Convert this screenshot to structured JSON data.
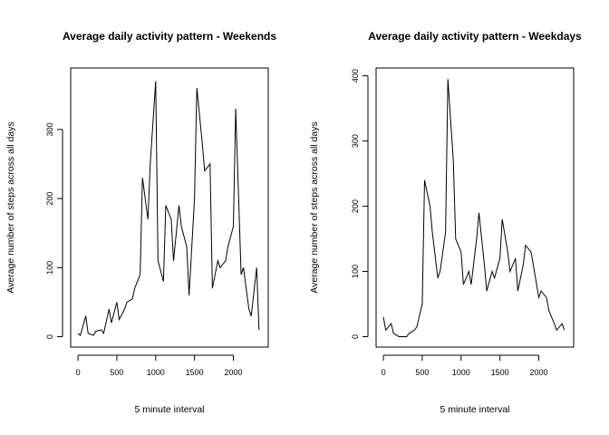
{
  "chart_data": [
    {
      "type": "line",
      "title": "Average daily activity pattern - Weekends",
      "x_label": "5 minute interval",
      "y_label": "Average number of steps across all days",
      "color": "#000000",
      "x": [
        0,
        30,
        100,
        130,
        200,
        230,
        300,
        330,
        400,
        430,
        500,
        530,
        600,
        630,
        700,
        730,
        800,
        830,
        900,
        930,
        1000,
        1030,
        1100,
        1130,
        1200,
        1230,
        1300,
        1330,
        1400,
        1430,
        1500,
        1530,
        1600,
        1630,
        1700,
        1730,
        1800,
        1830,
        1900,
        1930,
        2000,
        2030,
        2100,
        2130,
        2200,
        2230,
        2300,
        2330
      ],
      "values": [
        5,
        2,
        30,
        5,
        2,
        8,
        10,
        5,
        40,
        20,
        50,
        25,
        40,
        50,
        55,
        70,
        90,
        230,
        170,
        250,
        370,
        110,
        80,
        190,
        170,
        110,
        190,
        160,
        130,
        60,
        200,
        360,
        280,
        240,
        250,
        70,
        110,
        100,
        110,
        130,
        160,
        330,
        90,
        100,
        40,
        30,
        100,
        10
      ],
      "xlim": [
        -94.2,
        2449.2
      ],
      "ylim": [
        -15,
        389
      ],
      "xticks": [
        0,
        500,
        1000,
        1500,
        2000
      ],
      "yticks": [
        0,
        100,
        200,
        300
      ]
    },
    {
      "type": "line",
      "title": "Average daily activity pattern - Weekdays",
      "x_label": "5 minute interval",
      "y_label": "Average number of steps across all days",
      "color": "#000000",
      "x": [
        0,
        30,
        100,
        130,
        200,
        230,
        300,
        330,
        400,
        430,
        500,
        530,
        600,
        630,
        700,
        730,
        800,
        830,
        900,
        930,
        1000,
        1030,
        1100,
        1130,
        1200,
        1230,
        1300,
        1330,
        1400,
        1430,
        1500,
        1530,
        1600,
        1630,
        1700,
        1730,
        1800,
        1830,
        1900,
        1930,
        2000,
        2030,
        2100,
        2130,
        2200,
        2230,
        2300,
        2330
      ],
      "values": [
        30,
        10,
        20,
        5,
        0,
        0,
        0,
        5,
        10,
        15,
        50,
        240,
        200,
        160,
        90,
        100,
        160,
        395,
        270,
        150,
        130,
        80,
        100,
        80,
        150,
        190,
        110,
        70,
        100,
        90,
        120,
        180,
        130,
        100,
        120,
        70,
        110,
        140,
        130,
        110,
        60,
        70,
        60,
        40,
        20,
        10,
        20,
        10
      ],
      "xlim": [
        -94.2,
        2449.2
      ],
      "ylim": [
        -16,
        412
      ],
      "xticks": [
        0,
        500,
        1000,
        1500,
        2000
      ],
      "yticks": [
        0,
        100,
        200,
        300,
        400
      ]
    }
  ]
}
